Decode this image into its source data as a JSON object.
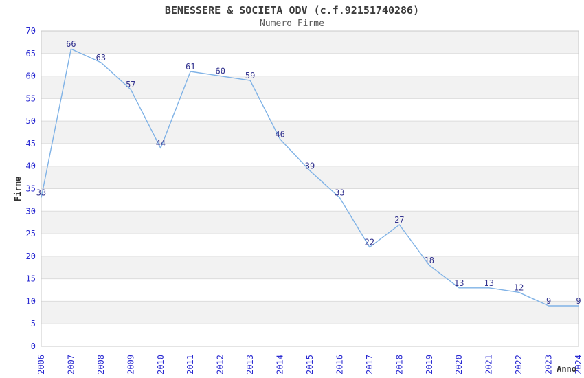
{
  "chart_data": {
    "type": "line",
    "title": "BENESSERE & SOCIETA ODV (c.f.92151740286)",
    "subtitle": "Numero Firme",
    "xlabel": "Anno",
    "ylabel": "Firme",
    "categories": [
      "2006",
      "2007",
      "2008",
      "2009",
      "2010",
      "2011",
      "2012",
      "2013",
      "2014",
      "2015",
      "2016",
      "2017",
      "2018",
      "2019",
      "2020",
      "2021",
      "2022",
      "2023",
      "2024"
    ],
    "values": [
      33,
      66,
      63,
      57,
      44,
      61,
      60,
      59,
      46,
      39,
      33,
      22,
      27,
      18,
      13,
      13,
      12,
      9,
      9
    ],
    "ylim": [
      0,
      70
    ],
    "ytick_step": 5,
    "grid": "horizontal-bands",
    "legend": "none",
    "colors": {
      "line": "#7fb2e6",
      "tick_label": "#2a2ad2",
      "data_label": "#33338f",
      "axis_title": "#333333",
      "band_odd": "#f2f2f2",
      "band_even": "#ffffff",
      "gridline": "#dcdcdc",
      "border": "#c8c8c8",
      "title": "#3c3c3c",
      "subtitle": "#5a5a5a"
    }
  }
}
